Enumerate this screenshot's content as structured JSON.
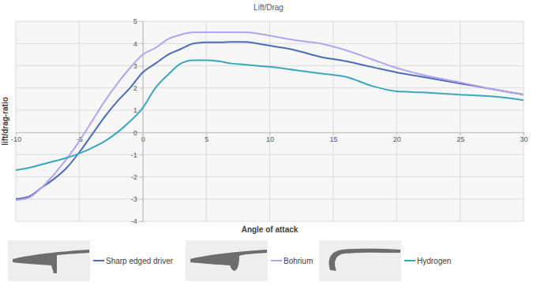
{
  "chart_data": {
    "type": "line",
    "title": "Lift/Drag",
    "x_label": "Angle of attack",
    "y_label": "lift/drag-ratio",
    "x": [
      -10,
      -9,
      -8,
      -7,
      -6,
      -5,
      -4,
      -3,
      -2,
      -1,
      0,
      1,
      2,
      3,
      4,
      5,
      6,
      7,
      8,
      9,
      10,
      12,
      14,
      16,
      18,
      20,
      22,
      25,
      28,
      30
    ],
    "series": [
      {
        "name": "Sharp edged driver",
        "color": "#4a6db5",
        "values": [
          -3.0,
          -2.9,
          -2.5,
          -2.1,
          -1.6,
          -0.9,
          -0.1,
          0.7,
          1.4,
          2.0,
          2.7,
          3.1,
          3.5,
          3.75,
          4.0,
          4.05,
          4.05,
          4.07,
          4.07,
          4.0,
          3.9,
          3.7,
          3.4,
          3.2,
          2.95,
          2.7,
          2.5,
          2.2,
          1.9,
          1.7
        ]
      },
      {
        "name": "Bohrium",
        "color": "#b3a4ef",
        "values": [
          -3.05,
          -2.95,
          -2.5,
          -1.9,
          -1.2,
          -0.4,
          0.5,
          1.4,
          2.2,
          2.9,
          3.5,
          3.8,
          4.2,
          4.4,
          4.5,
          4.5,
          4.5,
          4.5,
          4.5,
          4.45,
          4.35,
          4.15,
          4.0,
          3.7,
          3.3,
          2.9,
          2.6,
          2.25,
          1.9,
          1.7
        ]
      },
      {
        "name": "Hydrogen",
        "color": "#3ba7bd",
        "values": [
          -1.7,
          -1.6,
          -1.45,
          -1.3,
          -1.15,
          -0.95,
          -0.7,
          -0.4,
          0.0,
          0.5,
          1.1,
          2.0,
          2.6,
          3.1,
          3.25,
          3.25,
          3.2,
          3.1,
          3.05,
          3.0,
          2.95,
          2.8,
          2.65,
          2.5,
          2.1,
          1.85,
          1.8,
          1.7,
          1.6,
          1.45
        ]
      }
    ],
    "xlim": [
      -10,
      30
    ],
    "xticks": [
      -10,
      -5,
      0,
      5,
      10,
      15,
      20,
      25,
      30
    ],
    "ylim": [
      -4,
      5
    ],
    "yticks": [
      -4,
      -3,
      -2,
      -1,
      0,
      1,
      2,
      3,
      4,
      5
    ],
    "grid": true,
    "legend": "bottom"
  }
}
